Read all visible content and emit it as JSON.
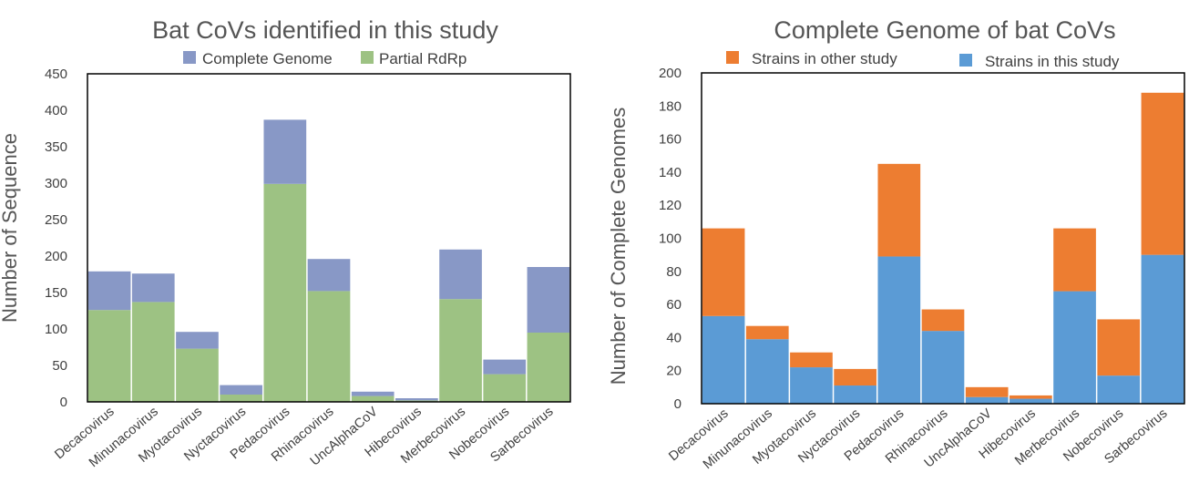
{
  "chart_data": [
    {
      "type": "bar",
      "stacked": true,
      "title": "Bat CoVs identified in this study",
      "xlabel": "",
      "ylabel": "Number of Sequence",
      "ylim": [
        0,
        450
      ],
      "yticks": [
        0,
        50,
        100,
        150,
        200,
        250,
        300,
        350,
        400,
        450
      ],
      "legend_position": "top",
      "categories": [
        "Decacovirus",
        "Minunacovirus",
        "Myotacovirus",
        "Nyctacovirus",
        "Pedacovirus",
        "Rhinacovirus",
        "UncAlphaCoV",
        "Hibecovirus",
        "Merbecovirus",
        "Nobecovirus",
        "Sarbecovirus"
      ],
      "series": [
        {
          "name": "Partial RdRp",
          "color": "#9dc283",
          "values": [
            126,
            137,
            73,
            10,
            299,
            152,
            8,
            2,
            141,
            38,
            95
          ]
        },
        {
          "name": "Complete Genome",
          "color": "#8898c6",
          "values": [
            53,
            39,
            23,
            13,
            88,
            44,
            6,
            3,
            68,
            20,
            90
          ]
        }
      ],
      "legend": [
        {
          "name": "Complete Genome",
          "color": "#8898c6"
        },
        {
          "name": "Partial RdRp",
          "color": "#9dc283"
        }
      ]
    },
    {
      "type": "bar",
      "stacked": true,
      "title": "Complete Genome of bat CoVs",
      "xlabel": "",
      "ylabel": "Number of Complete Genomes",
      "ylim": [
        0,
        200
      ],
      "yticks": [
        0,
        20,
        40,
        60,
        80,
        100,
        120,
        140,
        160,
        180,
        200
      ],
      "legend_position": "top",
      "categories": [
        "Decacovirus",
        "Minunacovirus",
        "Myotacovirus",
        "Nyctacovirus",
        "Pedacovirus",
        "Rhinacovirus",
        "UncAlphaCoV",
        "Hibecovirus",
        "Merbecovirus",
        "Nobecovirus",
        "Sarbecovirus"
      ],
      "series": [
        {
          "name": "Strains in this study",
          "color": "#5b9bd5",
          "values": [
            53,
            39,
            22,
            11,
            89,
            44,
            4,
            3,
            68,
            17,
            90
          ]
        },
        {
          "name": "Strains in other study",
          "color": "#ed7d31",
          "values": [
            53,
            8,
            9,
            10,
            56,
            13,
            6,
            2,
            38,
            34,
            98
          ]
        }
      ],
      "legend": [
        {
          "name": "Strains in other study",
          "color": "#ed7d31"
        },
        {
          "name": "Strains in this study",
          "color": "#5b9bd5"
        }
      ]
    }
  ]
}
